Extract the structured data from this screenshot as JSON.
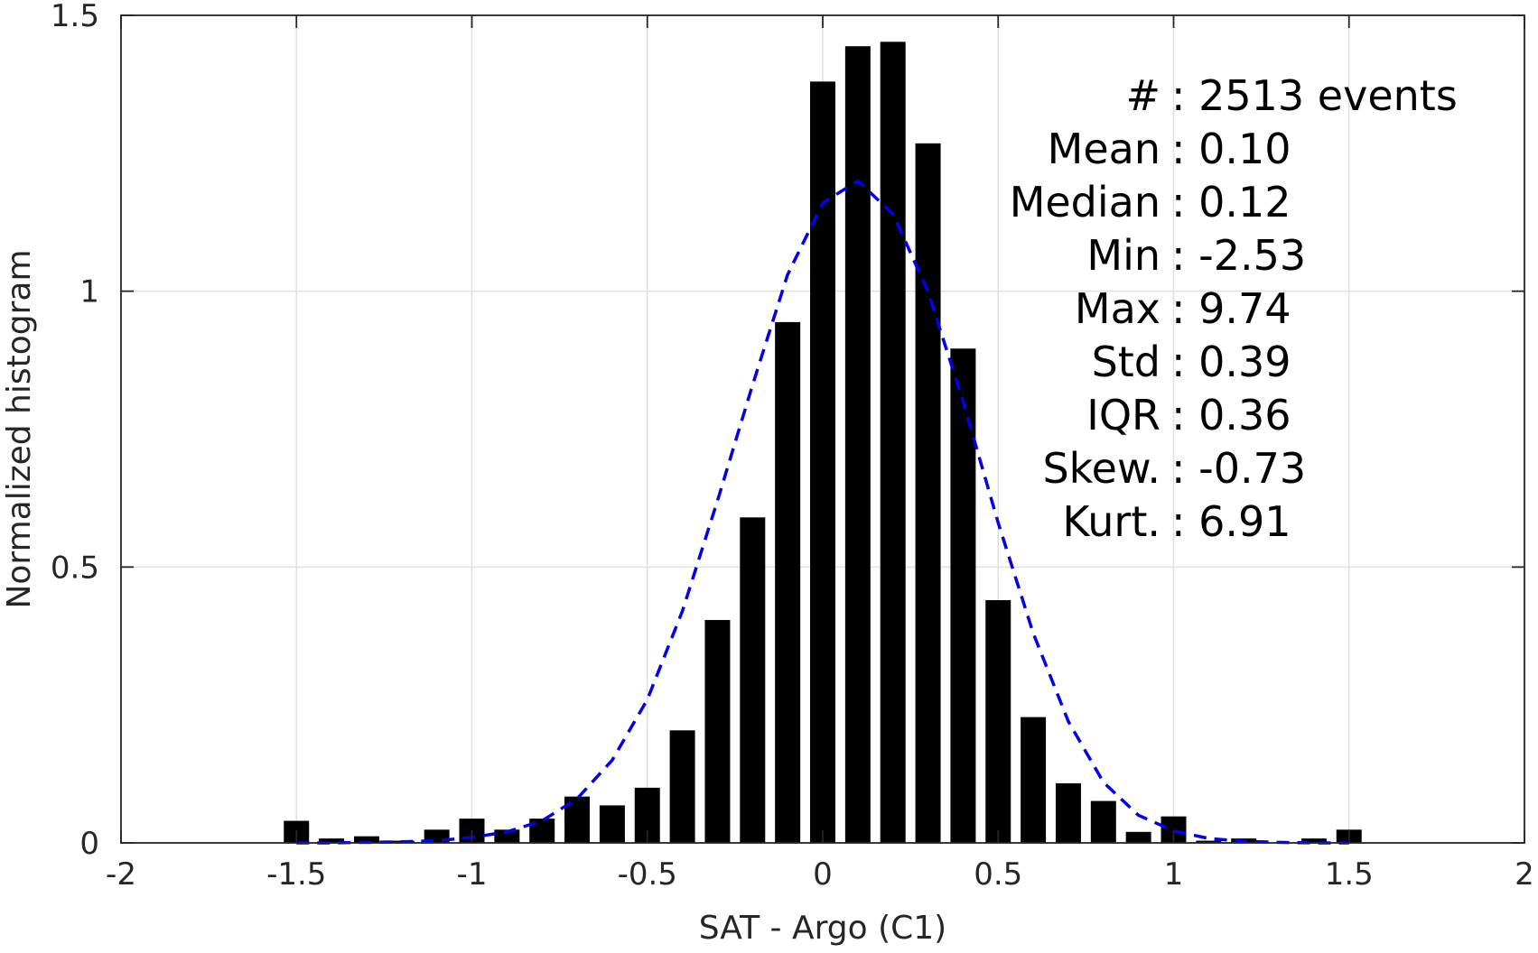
{
  "chart_data": {
    "type": "bar",
    "title": "",
    "xlabel": "SAT - Argo (C1)",
    "ylabel": "Normalized histogram",
    "xlim": [
      -2,
      2
    ],
    "ylim": [
      0,
      1.5
    ],
    "grid": true,
    "xticks": [
      -2,
      -1.5,
      -1,
      -0.5,
      0,
      0.5,
      1,
      1.5,
      2
    ],
    "xtick_labels": [
      "-2",
      "-1.5",
      "-1",
      "-0.5",
      "0",
      "0.5",
      "1",
      "1.5",
      "2"
    ],
    "yticks": [
      0,
      0.5,
      1,
      1.5
    ],
    "ytick_labels": [
      "0",
      "0.5",
      "1",
      "1.5"
    ],
    "bars": {
      "color": "#000000",
      "x": [
        -1.5,
        -1.4,
        -1.3,
        -1.2,
        -1.1,
        -1.0,
        -0.9,
        -0.8,
        -0.7,
        -0.6,
        -0.5,
        -0.4,
        -0.3,
        -0.2,
        -0.1,
        0.0,
        0.1,
        0.2,
        0.3,
        0.4,
        0.5,
        0.6,
        0.7,
        0.8,
        0.9,
        1.0,
        1.1,
        1.2,
        1.3,
        1.4,
        1.5
      ],
      "values": [
        0.04,
        0.008,
        0.012,
        0.004,
        0.024,
        0.044,
        0.024,
        0.044,
        0.084,
        0.068,
        0.1,
        0.204,
        0.404,
        0.59,
        0.944,
        1.38,
        1.444,
        1.452,
        1.268,
        0.896,
        0.44,
        0.228,
        0.108,
        0.076,
        0.02,
        0.048,
        0.004,
        0.008,
        0.0,
        0.008,
        0.024
      ]
    },
    "fit_curve": {
      "style": "dashed",
      "color": "#0000ee",
      "x": [
        -1.5,
        -1.4,
        -1.3,
        -1.2,
        -1.1,
        -1.0,
        -0.9,
        -0.8,
        -0.7,
        -0.6,
        -0.5,
        -0.4,
        -0.3,
        -0.2,
        -0.1,
        0.0,
        0.1,
        0.2,
        0.3,
        0.4,
        0.5,
        0.6,
        0.7,
        0.8,
        0.9,
        1.0,
        1.1,
        1.2,
        1.3,
        1.4,
        1.5
      ],
      "y": [
        0.0,
        0.0,
        0.001,
        0.002,
        0.004,
        0.01,
        0.02,
        0.04,
        0.08,
        0.15,
        0.26,
        0.42,
        0.62,
        0.83,
        1.03,
        1.16,
        1.2,
        1.14,
        1.0,
        0.8,
        0.58,
        0.38,
        0.22,
        0.11,
        0.05,
        0.022,
        0.008,
        0.003,
        0.001,
        0.0,
        0.0
      ]
    },
    "annotations": [
      {
        "label": "#",
        "value": ": 2513 events"
      },
      {
        "label": "Mean",
        "value": ": 0.10"
      },
      {
        "label": "Median",
        "value": ": 0.12"
      },
      {
        "label": "Min",
        "value": ": -2.53"
      },
      {
        "label": "Max",
        "value": ": 9.74"
      },
      {
        "label": "Std",
        "value": ": 0.39"
      },
      {
        "label": "IQR",
        "value": ": 0.36"
      },
      {
        "label": "Skew.",
        "value": ": -0.73"
      },
      {
        "label": "Kurt.",
        "value": ": 6.91"
      }
    ]
  }
}
